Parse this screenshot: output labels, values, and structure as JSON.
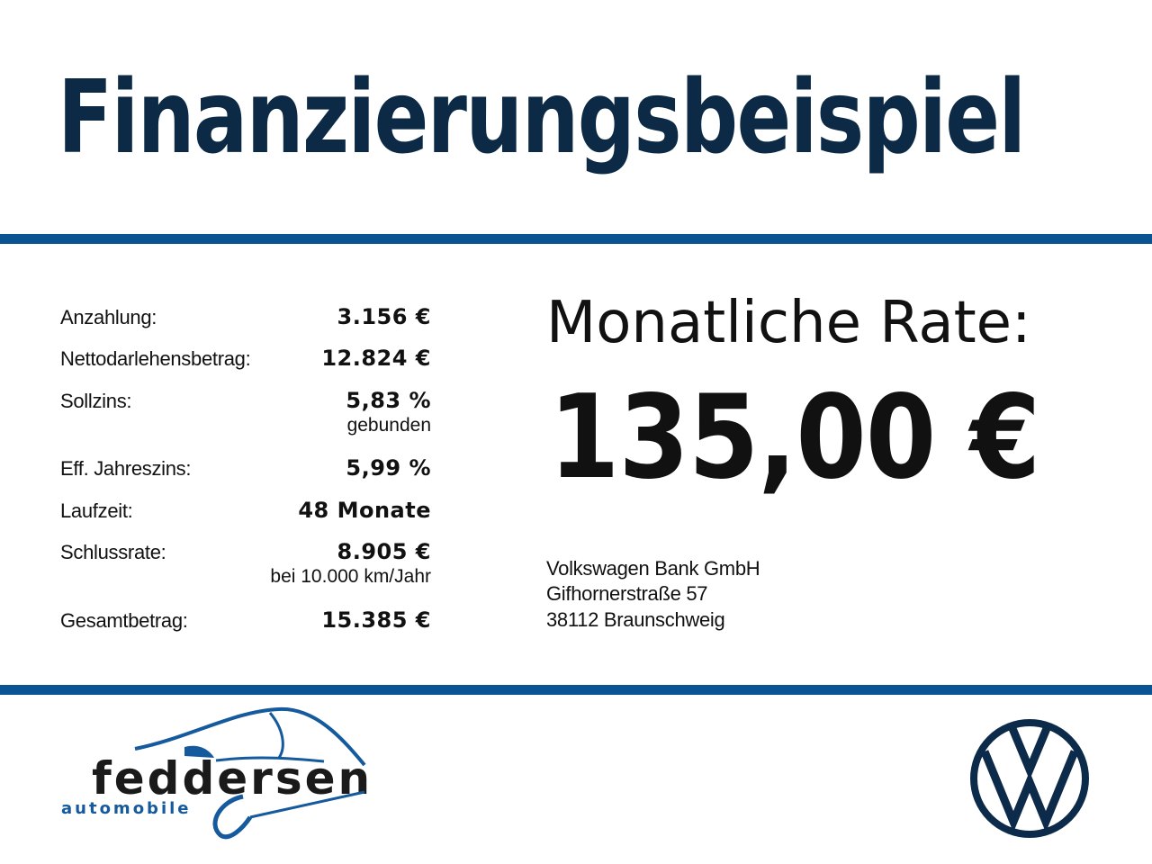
{
  "header": {
    "title": "Finanzierungsbeispiel"
  },
  "colors": {
    "accent_bar": "#0a5494",
    "title": "#0c2a45",
    "vw_logo": "#0c2a4a"
  },
  "details": [
    {
      "label": "Anzahlung:",
      "value": "3.156 €"
    },
    {
      "label": "Nettodarlehensbetrag:",
      "value": "12.824 €"
    },
    {
      "label": "Sollzins:",
      "value": "5,83 %",
      "note": "gebunden"
    },
    {
      "label": "Eff. Jahreszins:",
      "value": "5,99 %"
    },
    {
      "label": "Laufzeit:",
      "value": "48 Monate"
    },
    {
      "label": "Schlussrate:",
      "value": "8.905 €",
      "note": "bei 10.000 km/Jahr"
    },
    {
      "label": "Gesamtbetrag:",
      "value": "15.385 €"
    }
  ],
  "rate": {
    "label": "Monatliche Rate:",
    "value": "135,00 €"
  },
  "lender": {
    "lines": [
      "Volkswagen Bank GmbH",
      "Gifhornerstraße 57",
      "38112 Braunschweig"
    ]
  },
  "footer": {
    "dealer_logo": {
      "name": "feddersen",
      "subtitle": "automobile"
    },
    "brand_logo": "vw-logo"
  }
}
